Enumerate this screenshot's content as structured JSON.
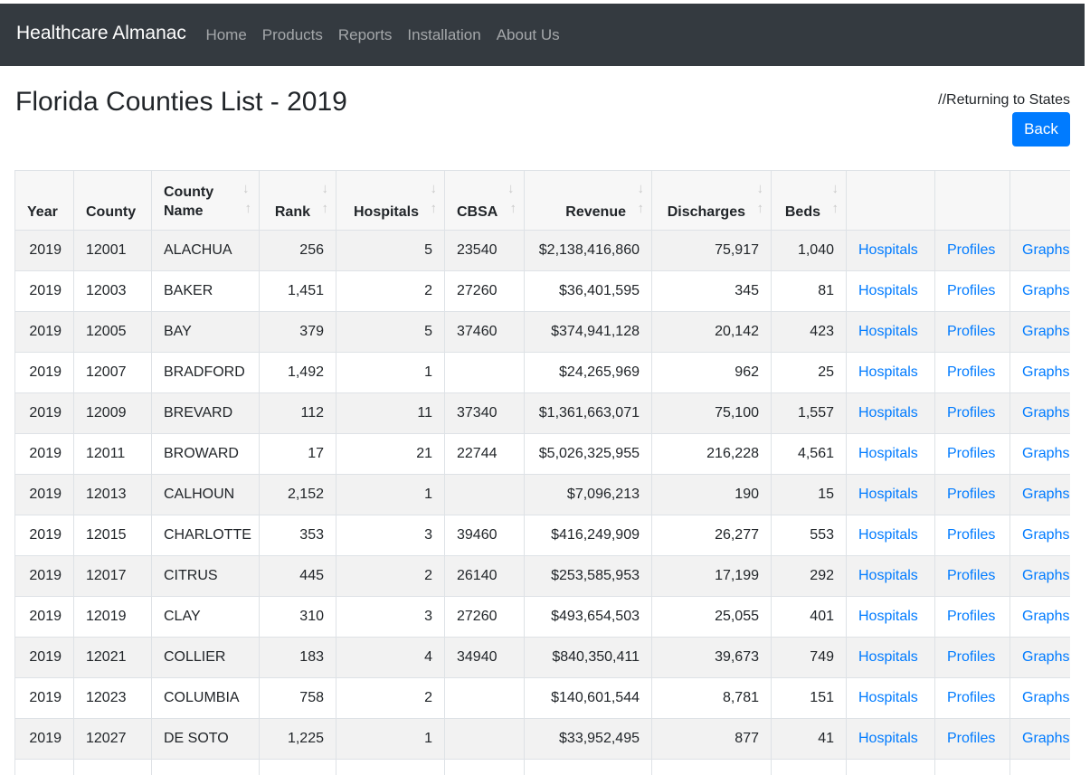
{
  "navbar": {
    "brand": "Healthcare Almanac",
    "links": [
      "Home",
      "Products",
      "Reports",
      "Installation",
      "About Us"
    ]
  },
  "page": {
    "title": "Florida Counties List - 2019",
    "return_note": "//Returning to States",
    "back_label": "Back"
  },
  "icons": {
    "sort_down": "↓",
    "sort_up": "↑"
  },
  "colors": {
    "navbar_bg": "#343a40",
    "link": "#007bff",
    "button": "#007bff"
  },
  "table": {
    "headers": [
      "Year",
      "County",
      "County Name",
      "Rank",
      "Hospitals",
      "CBSA",
      "Revenue",
      "Discharges",
      "Beds",
      "",
      "",
      ""
    ],
    "rows": [
      [
        "2019",
        "12001",
        "ALACHUA",
        "256",
        "5",
        "23540",
        "$2,138,416,860",
        "75,917",
        "1,040",
        "Hospitals",
        "Profiles",
        "Graphs"
      ],
      [
        "2019",
        "12003",
        "BAKER",
        "1,451",
        "2",
        "27260",
        "$36,401,595",
        "345",
        "81",
        "Hospitals",
        "Profiles",
        "Graphs"
      ],
      [
        "2019",
        "12005",
        "BAY",
        "379",
        "5",
        "37460",
        "$374,941,128",
        "20,142",
        "423",
        "Hospitals",
        "Profiles",
        "Graphs"
      ],
      [
        "2019",
        "12007",
        "BRADFORD",
        "1,492",
        "1",
        "",
        "$24,265,969",
        "962",
        "25",
        "Hospitals",
        "Profiles",
        "Graphs"
      ],
      [
        "2019",
        "12009",
        "BREVARD",
        "112",
        "11",
        "37340",
        "$1,361,663,071",
        "75,100",
        "1,557",
        "Hospitals",
        "Profiles",
        "Graphs"
      ],
      [
        "2019",
        "12011",
        "BROWARD",
        "17",
        "21",
        "22744",
        "$5,026,325,955",
        "216,228",
        "4,561",
        "Hospitals",
        "Profiles",
        "Graphs"
      ],
      [
        "2019",
        "12013",
        "CALHOUN",
        "2,152",
        "1",
        "",
        "$7,096,213",
        "190",
        "15",
        "Hospitals",
        "Profiles",
        "Graphs"
      ],
      [
        "2019",
        "12015",
        "CHARLOTTE",
        "353",
        "3",
        "39460",
        "$416,249,909",
        "26,277",
        "553",
        "Hospitals",
        "Profiles",
        "Graphs"
      ],
      [
        "2019",
        "12017",
        "CITRUS",
        "445",
        "2",
        "26140",
        "$253,585,953",
        "17,199",
        "292",
        "Hospitals",
        "Profiles",
        "Graphs"
      ],
      [
        "2019",
        "12019",
        "CLAY",
        "310",
        "3",
        "27260",
        "$493,654,503",
        "25,055",
        "401",
        "Hospitals",
        "Profiles",
        "Graphs"
      ],
      [
        "2019",
        "12021",
        "COLLIER",
        "183",
        "4",
        "34940",
        "$840,350,411",
        "39,673",
        "749",
        "Hospitals",
        "Profiles",
        "Graphs"
      ],
      [
        "2019",
        "12023",
        "COLUMBIA",
        "758",
        "2",
        "",
        "$140,601,544",
        "8,781",
        "151",
        "Hospitals",
        "Profiles",
        "Graphs"
      ],
      [
        "2019",
        "12027",
        "DE SOTO",
        "1,225",
        "1",
        "",
        "$33,952,495",
        "877",
        "41",
        "Hospitals",
        "Profiles",
        "Graphs"
      ],
      [
        "",
        "",
        "",
        "",
        "",
        "",
        "",
        "",
        "",
        "",
        "",
        ""
      ]
    ]
  }
}
